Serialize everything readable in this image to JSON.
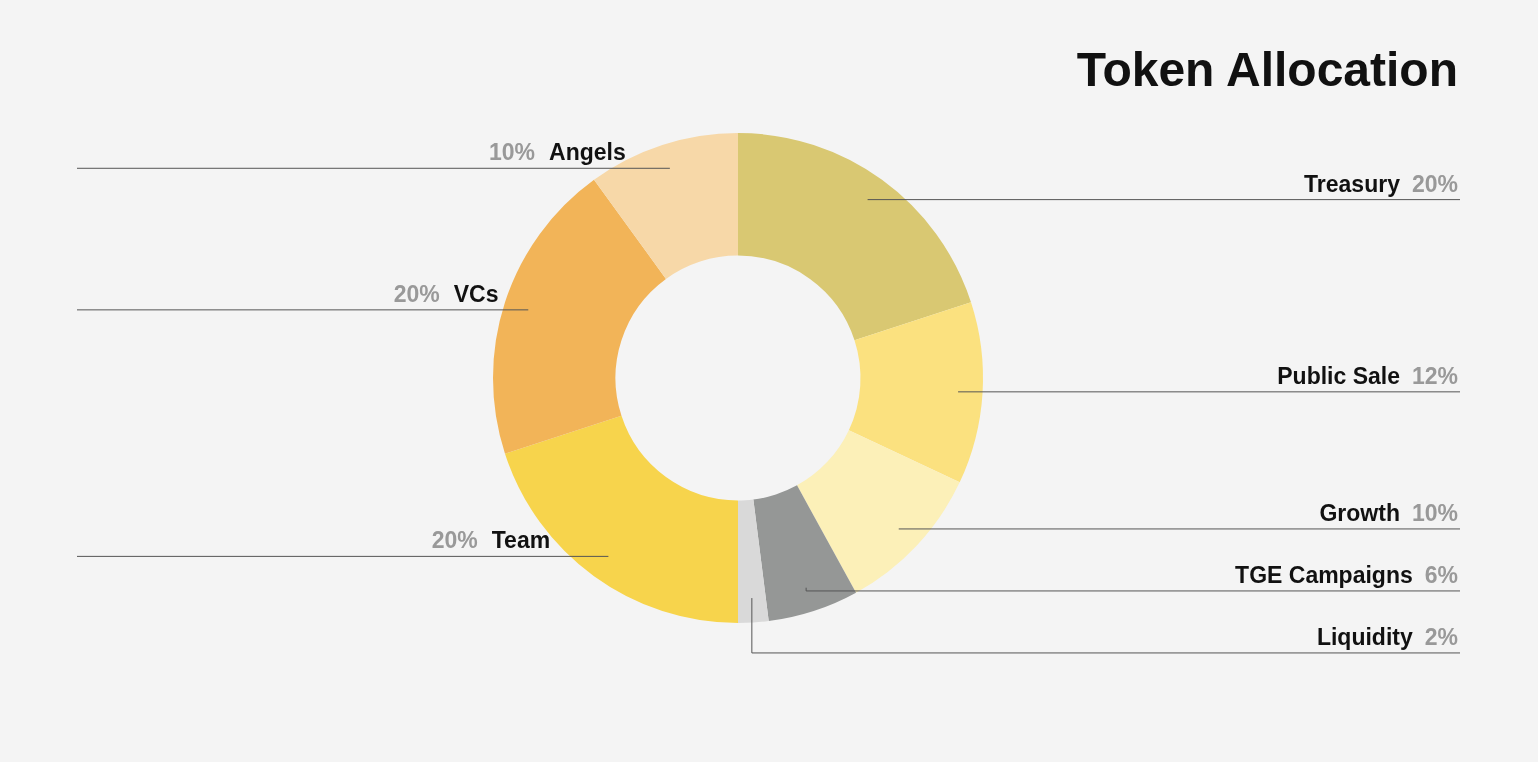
{
  "chart_data": {
    "type": "donut",
    "title": "Token Allocation",
    "categories": [
      "Treasury",
      "Public Sale",
      "Growth",
      "TGE Campaigns",
      "Liquidity",
      "Team",
      "VCs",
      "Angels"
    ],
    "values": [
      20,
      12,
      10,
      6,
      2,
      20,
      20,
      10
    ],
    "value_labels": [
      "20%",
      "12%",
      "10%",
      "6%",
      "2%",
      "20%",
      "20%",
      "10%"
    ],
    "colors": [
      "#d9c872",
      "#fbe17f",
      "#fcf0b8",
      "#959796",
      "#d9d9d9",
      "#f7d44c",
      "#f2b458",
      "#f7d8a8"
    ],
    "legend": false
  }
}
